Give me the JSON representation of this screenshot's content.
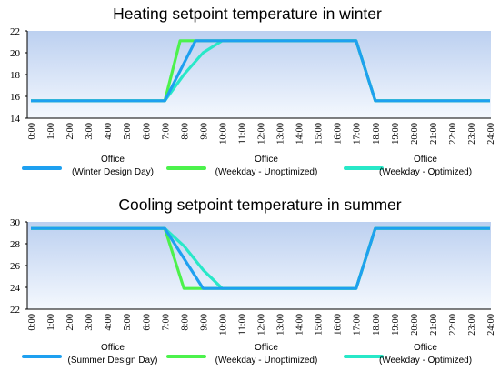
{
  "colors": {
    "plot_top": "#bcd0f0",
    "plot_bottom": "#f4f8fe",
    "axis": "#000000"
  },
  "chart_data": [
    {
      "type": "line",
      "title": "Heating setpoint temperature in winter",
      "x": [
        "0:00",
        "1:00",
        "2:00",
        "3:00",
        "4:00",
        "5:00",
        "6:00",
        "7:00",
        "8:00",
        "9:00",
        "10:00",
        "11:00",
        "12:00",
        "13:00",
        "14:00",
        "15:00",
        "16:00",
        "17:00",
        "18:00",
        "19:00",
        "20:00",
        "21:00",
        "22:00",
        "23:00",
        "24:00"
      ],
      "ylim": [
        14,
        22
      ],
      "yticks": [
        14,
        16,
        18,
        20,
        22
      ],
      "legend_position": "bottom",
      "series": [
        {
          "name": "Office\n(Winter Design Day)",
          "color": "#1ea0f0",
          "points": [
            [
              0,
              15.6
            ],
            [
              7,
              15.6
            ],
            [
              8.6,
              21.1
            ],
            [
              17,
              21.1
            ],
            [
              18,
              15.6
            ],
            [
              24,
              15.6
            ]
          ]
        },
        {
          "name": "Office\n(Weekday - Unoptimized)",
          "color": "#4cf24c",
          "points": [
            [
              0,
              15.6
            ],
            [
              7,
              15.6
            ],
            [
              7.8,
              21.1
            ],
            [
              17,
              21.1
            ],
            [
              18,
              15.6
            ],
            [
              24,
              15.6
            ]
          ]
        },
        {
          "name": "Office\n(Weekday - Optimized)",
          "color": "#28e8c8",
          "points": [
            [
              0,
              15.6
            ],
            [
              7,
              15.6
            ],
            [
              8,
              18.0
            ],
            [
              9,
              20.0
            ],
            [
              10,
              21.1
            ],
            [
              17,
              21.1
            ],
            [
              18,
              15.6
            ],
            [
              24,
              15.6
            ]
          ]
        }
      ]
    },
    {
      "type": "line",
      "title": "Cooling setpoint temperature in summer",
      "x": [
        "0:00",
        "1:00",
        "2:00",
        "3:00",
        "4:00",
        "5:00",
        "6:00",
        "7:00",
        "8:00",
        "9:00",
        "10:00",
        "11:00",
        "12:00",
        "13:00",
        "14:00",
        "15:00",
        "16:00",
        "17:00",
        "18:00",
        "19:00",
        "20:00",
        "21:00",
        "22:00",
        "23:00",
        "24:00"
      ],
      "ylim": [
        22,
        30
      ],
      "yticks": [
        22,
        24,
        26,
        28,
        30
      ],
      "legend_position": "bottom",
      "series": [
        {
          "name": "Office\n(Summer Design Day)",
          "color": "#1ea0f0",
          "points": [
            [
              0,
              29.4
            ],
            [
              7,
              29.4
            ],
            [
              9,
              23.9
            ],
            [
              17,
              23.9
            ],
            [
              18,
              29.4
            ],
            [
              24,
              29.4
            ]
          ]
        },
        {
          "name": "Office\n(Weekday - Unoptimized)",
          "color": "#4cf24c",
          "points": [
            [
              0,
              29.4
            ],
            [
              7,
              29.4
            ],
            [
              8,
              23.9
            ],
            [
              17,
              23.9
            ],
            [
              18,
              29.4
            ],
            [
              24,
              29.4
            ]
          ]
        },
        {
          "name": "Office\n(Weekday - Optimized)",
          "color": "#28e8c8",
          "points": [
            [
              0,
              29.4
            ],
            [
              7,
              29.4
            ],
            [
              8,
              27.8
            ],
            [
              9,
              25.6
            ],
            [
              10,
              23.9
            ],
            [
              17,
              23.9
            ],
            [
              18,
              29.4
            ],
            [
              24,
              29.4
            ]
          ]
        }
      ]
    }
  ]
}
